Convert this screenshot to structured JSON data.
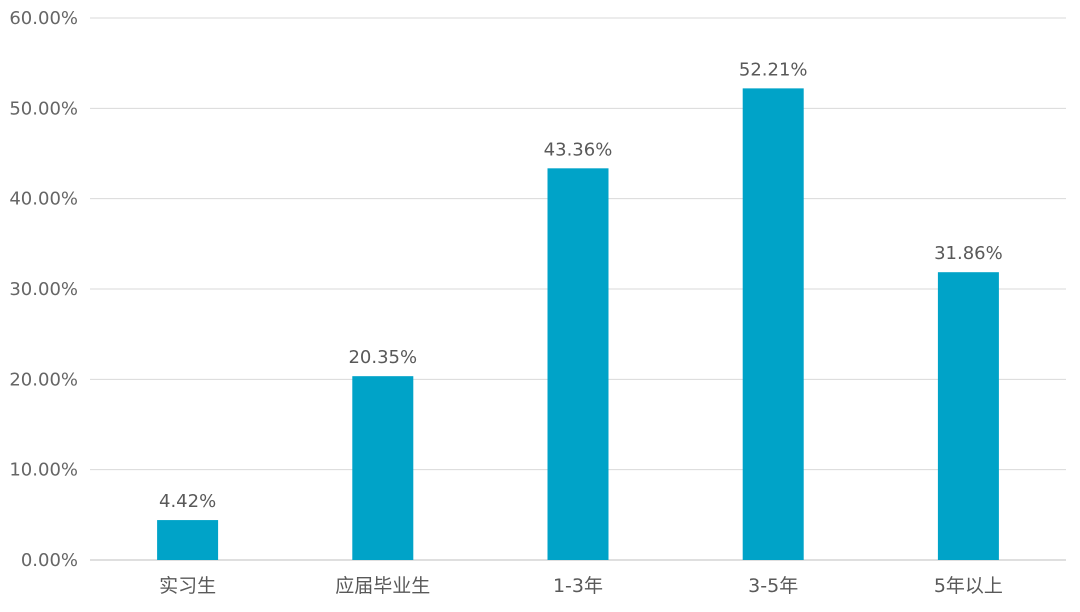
{
  "chart_data": {
    "type": "bar",
    "categories": [
      "实习生",
      "应届毕业生",
      "1-3年",
      "3-5年",
      "5年以上"
    ],
    "values": [
      4.42,
      20.35,
      43.36,
      52.21,
      31.86
    ],
    "value_labels": [
      "4.42%",
      "20.35%",
      "43.36%",
      "52.21%",
      "31.86%"
    ],
    "y_ticks": [
      0,
      10,
      20,
      30,
      40,
      50,
      60
    ],
    "y_tick_labels": [
      "0.00%",
      "10.00%",
      "20.00%",
      "30.00%",
      "40.00%",
      "50.00%",
      "60.00%"
    ],
    "ylim": [
      0,
      60
    ],
    "grid": true,
    "legend": "none",
    "title": "",
    "xlabel": "",
    "ylabel": "",
    "colors": {
      "bar": "#00A3C8",
      "grid": "#D9D9D9",
      "axis": "#BFBFBF"
    }
  }
}
